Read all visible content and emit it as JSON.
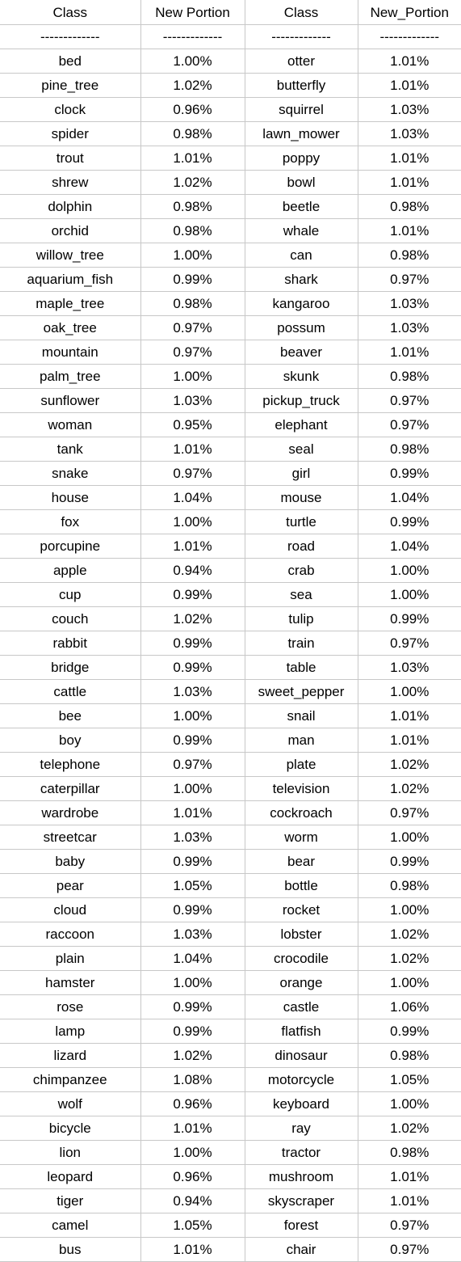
{
  "headers": [
    "Class",
    "New Portion",
    "Class",
    "New_Portion"
  ],
  "separators": [
    "-------------",
    "-------------",
    "-------------",
    "-------------"
  ],
  "rows": [
    [
      "bed",
      "1.00%",
      "otter",
      "1.01%"
    ],
    [
      "pine_tree",
      "1.02%",
      "butterfly",
      "1.01%"
    ],
    [
      "clock",
      "0.96%",
      "squirrel",
      "1.03%"
    ],
    [
      "spider",
      "0.98%",
      "lawn_mower",
      "1.03%"
    ],
    [
      "trout",
      "1.01%",
      "poppy",
      "1.01%"
    ],
    [
      "shrew",
      "1.02%",
      "bowl",
      "1.01%"
    ],
    [
      "dolphin",
      "0.98%",
      "beetle",
      "0.98%"
    ],
    [
      "orchid",
      "0.98%",
      "whale",
      "1.01%"
    ],
    [
      "willow_tree",
      "1.00%",
      "can",
      "0.98%"
    ],
    [
      "aquarium_fish",
      "0.99%",
      "shark",
      "0.97%"
    ],
    [
      "maple_tree",
      "0.98%",
      "kangaroo",
      "1.03%"
    ],
    [
      "oak_tree",
      "0.97%",
      "possum",
      "1.03%"
    ],
    [
      "mountain",
      "0.97%",
      "beaver",
      "1.01%"
    ],
    [
      "palm_tree",
      "1.00%",
      "skunk",
      "0.98%"
    ],
    [
      "sunflower",
      "1.03%",
      "pickup_truck",
      "0.97%"
    ],
    [
      "woman",
      "0.95%",
      "elephant",
      "0.97%"
    ],
    [
      "tank",
      "1.01%",
      "seal",
      "0.98%"
    ],
    [
      "snake",
      "0.97%",
      "girl",
      "0.99%"
    ],
    [
      "house",
      "1.04%",
      "mouse",
      "1.04%"
    ],
    [
      "fox",
      "1.00%",
      "turtle",
      "0.99%"
    ],
    [
      "porcupine",
      "1.01%",
      "road",
      "1.04%"
    ],
    [
      "apple",
      "0.94%",
      "crab",
      "1.00%"
    ],
    [
      "cup",
      "0.99%",
      "sea",
      "1.00%"
    ],
    [
      "couch",
      "1.02%",
      "tulip",
      "0.99%"
    ],
    [
      "rabbit",
      "0.99%",
      "train",
      "0.97%"
    ],
    [
      "bridge",
      "0.99%",
      "table",
      "1.03%"
    ],
    [
      "cattle",
      "1.03%",
      "sweet_pepper",
      "1.00%"
    ],
    [
      "bee",
      "1.00%",
      "snail",
      "1.01%"
    ],
    [
      "boy",
      "0.99%",
      "man",
      "1.01%"
    ],
    [
      "telephone",
      "0.97%",
      "plate",
      "1.02%"
    ],
    [
      "caterpillar",
      "1.00%",
      "television",
      "1.02%"
    ],
    [
      "wardrobe",
      "1.01%",
      "cockroach",
      "0.97%"
    ],
    [
      "streetcar",
      "1.03%",
      "worm",
      "1.00%"
    ],
    [
      "baby",
      "0.99%",
      "bear",
      "0.99%"
    ],
    [
      "pear",
      "1.05%",
      "bottle",
      "0.98%"
    ],
    [
      "cloud",
      "0.99%",
      "rocket",
      "1.00%"
    ],
    [
      "raccoon",
      "1.03%",
      "lobster",
      "1.02%"
    ],
    [
      "plain",
      "1.04%",
      "crocodile",
      "1.02%"
    ],
    [
      "hamster",
      "1.00%",
      "orange",
      "1.00%"
    ],
    [
      "rose",
      "0.99%",
      "castle",
      "1.06%"
    ],
    [
      "lamp",
      "0.99%",
      "flatfish",
      "0.99%"
    ],
    [
      "lizard",
      "1.02%",
      "dinosaur",
      "0.98%"
    ],
    [
      "chimpanzee",
      "1.08%",
      "motorcycle",
      "1.05%"
    ],
    [
      "wolf",
      "0.96%",
      "keyboard",
      "1.00%"
    ],
    [
      "bicycle",
      "1.01%",
      "ray",
      "1.02%"
    ],
    [
      "lion",
      "1.00%",
      "tractor",
      "0.98%"
    ],
    [
      "leopard",
      "0.96%",
      "mushroom",
      "1.01%"
    ],
    [
      "tiger",
      "0.94%",
      "skyscraper",
      "1.01%"
    ],
    [
      "camel",
      "1.05%",
      "forest",
      "0.97%"
    ],
    [
      "bus",
      "1.01%",
      "chair",
      "0.97%"
    ]
  ]
}
